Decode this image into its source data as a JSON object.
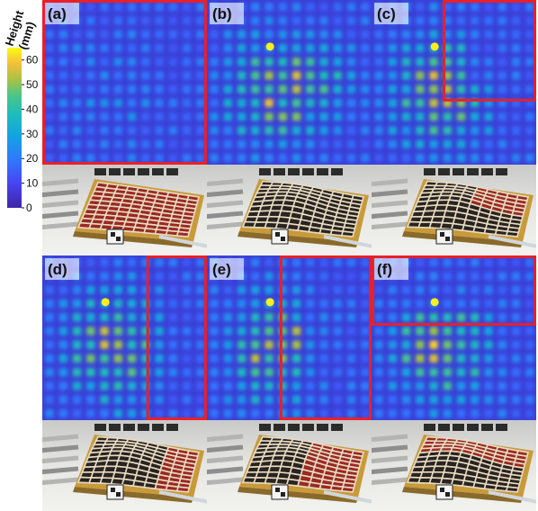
{
  "colorbar": {
    "title_line1": "Height",
    "title_line2": "(mm)",
    "ticks": [
      60,
      50,
      40,
      30,
      20,
      10,
      0
    ],
    "range": [
      0,
      65
    ],
    "colormap": [
      "#3e26a8",
      "#4743f0",
      "#2f79fd",
      "#14a3e2",
      "#1ebbbd",
      "#49c689",
      "#a8c243",
      "#f5be3b",
      "#f9fb15"
    ]
  },
  "panels": [
    {
      "id": "a",
      "label": "(a)",
      "highlight": "full"
    },
    {
      "id": "b",
      "label": "(b)",
      "highlight": "none"
    },
    {
      "id": "c",
      "label": "(c)",
      "highlight": "top-right"
    },
    {
      "id": "d",
      "label": "(d)",
      "highlight": "right-narrow"
    },
    {
      "id": "e",
      "label": "(e)",
      "highlight": "right-half"
    },
    {
      "id": "f",
      "label": "(f)",
      "highlight": "top-band"
    }
  ],
  "colors": {
    "highlight": "#e8202a",
    "base_heatmap": "#3a3fd6",
    "device_red": "#9a2a22",
    "device_dark": "#2a2420",
    "grid_light": "#e8dcc4",
    "base_gold": "#c89a3a"
  }
}
